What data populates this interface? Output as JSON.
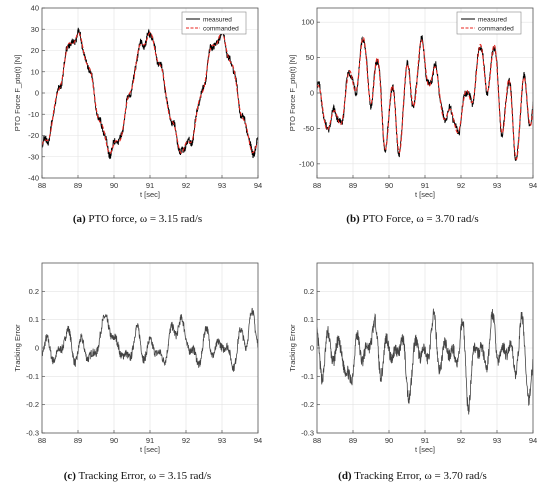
{
  "charts": [
    {
      "id": "a",
      "type": "line",
      "ylabel": "PTO Force F_pto(t) [N]",
      "xlabel": "t [sec]",
      "xlim": [
        88,
        94
      ],
      "ylim": [
        -40,
        40
      ],
      "xticks": [
        88,
        89,
        90,
        91,
        92,
        93,
        94
      ],
      "yticks": [
        -40,
        -30,
        -20,
        -10,
        0,
        10,
        20,
        30,
        40
      ],
      "grid": true,
      "legend": {
        "placement": "top-right",
        "entries": [
          "measured",
          "commanded"
        ]
      },
      "caption": {
        "letter": "(a)",
        "text": "PTO force, ω = 3.15 rad/s"
      },
      "omega": 3.15,
      "base_amp": 26.5,
      "base_phase": -2.15,
      "ripple": 2.6,
      "ripple_freq": 19.0,
      "kind": "force"
    },
    {
      "id": "b",
      "type": "line",
      "ylabel": "PTO Force F_pto(t) [N]",
      "xlabel": "t [sec]",
      "xlim": [
        88,
        94
      ],
      "ylim": [
        -120,
        120
      ],
      "xticks": [
        88,
        89,
        90,
        91,
        92,
        93,
        94
      ],
      "yticks": [
        -100,
        -50,
        0,
        50,
        100
      ],
      "grid": true,
      "legend": {
        "placement": "top-right",
        "entries": [
          "measured",
          "commanded"
        ]
      },
      "caption": {
        "letter": "(b)",
        "text": "PTO Force, ω = 3.70 rad/s"
      },
      "omega": 3.7,
      "base_amp": 42,
      "base_phase": -2.0,
      "ripple": 52,
      "ripple_freq": 15.5,
      "kind": "force"
    },
    {
      "id": "c",
      "type": "line",
      "ylabel": "Tracking Error",
      "xlabel": "t [sec]",
      "xlim": [
        88,
        94
      ],
      "ylim": [
        -0.3,
        0.3
      ],
      "xticks": [
        88,
        89,
        90,
        91,
        92,
        93,
        94
      ],
      "yticks": [
        -0.3,
        -0.2,
        -0.1,
        0,
        0.1,
        0.2
      ],
      "grid": true,
      "caption": {
        "letter": "(c)",
        "text": "Tracking Error, ω = 3.15 rad/s"
      },
      "omega": 3.15,
      "amp": 0.06,
      "kind": "error",
      "seed": 7
    },
    {
      "id": "d",
      "type": "line",
      "ylabel": "Tracking Error",
      "xlabel": "t [sec]",
      "xlim": [
        88,
        94
      ],
      "ylim": [
        -0.3,
        0.3
      ],
      "xticks": [
        88,
        89,
        90,
        91,
        92,
        93,
        94
      ],
      "yticks": [
        -0.3,
        -0.2,
        -0.1,
        0,
        0.1,
        0.2
      ],
      "grid": true,
      "caption": {
        "letter": "(d)",
        "text": "Tracking Error, ω = 3.70 rad/s"
      },
      "omega": 3.7,
      "amp": 0.09,
      "kind": "error",
      "seed": 13
    }
  ],
  "colors": {
    "measured": "#000000",
    "commanded": "#e8251f",
    "error": "#444444",
    "grid": "#e3e3e3",
    "axis": "#555555"
  }
}
